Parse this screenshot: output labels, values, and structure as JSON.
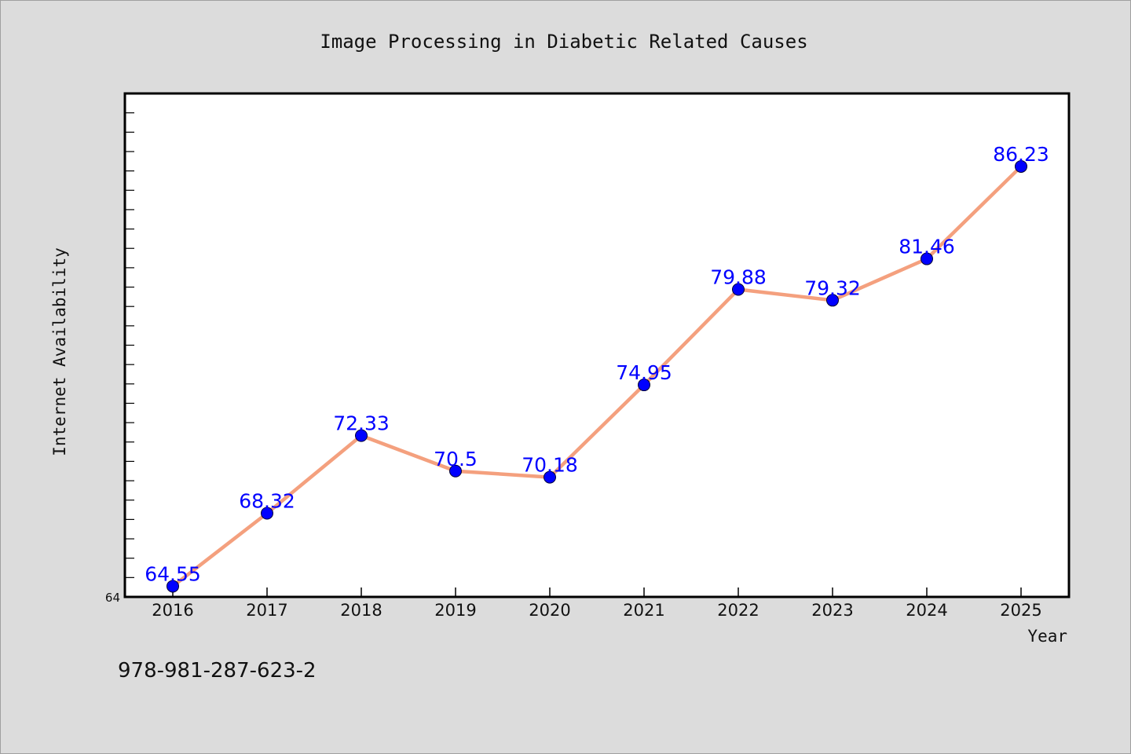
{
  "chart_data": {
    "type": "line",
    "title": "Image Processing in Diabetic Related Causes",
    "xlabel": "Year",
    "ylabel": "Internet Availability",
    "categories": [
      "2016",
      "2017",
      "2018",
      "2019",
      "2020",
      "2021",
      "2022",
      "2023",
      "2024",
      "2025"
    ],
    "series": [
      {
        "values": [
          64.55,
          68.32,
          72.33,
          70.5,
          70.18,
          74.95,
          79.88,
          79.32,
          81.46,
          86.23
        ],
        "labels": [
          "64.55",
          "68.32",
          "72.33",
          "70.5",
          "70.18",
          "74.95",
          "79.88",
          "79.32",
          "81.46",
          "86.23"
        ],
        "line_color": "#f4a07e",
        "marker_color": "#0000ff",
        "label_color": "#0000ff"
      }
    ],
    "yticks": [
      "64"
    ],
    "ylim": [
      64,
      90
    ],
    "minor_ytick_step": 1,
    "grid": false,
    "legend": "none"
  },
  "footer": {
    "isbn": "978-981-287-623-2"
  },
  "colors": {
    "background": "#dcdcdc",
    "plot_background": "#ffffff"
  }
}
